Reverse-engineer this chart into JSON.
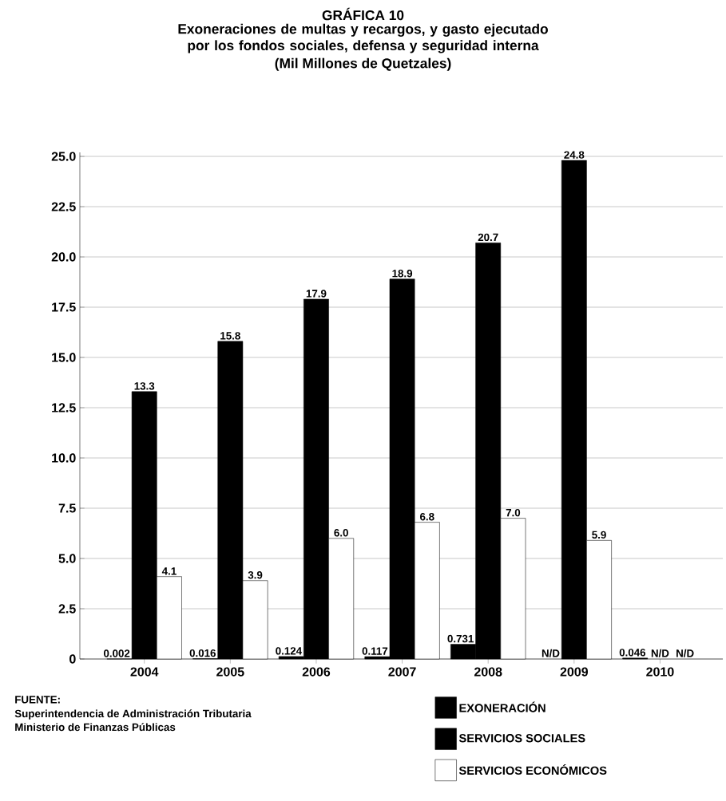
{
  "chart_data": {
    "type": "bar",
    "title": "GRÁFICA 10",
    "subtitle": "Exoneraciones de multas y recargos, y gasto ejecutado por los fondos sociales, defensa y seguridad interna",
    "categories": [
      "2004",
      "2005",
      "2006",
      "2007",
      "2008",
      "2009",
      "2010"
    ],
    "series": [
      {
        "name": "EXONERACIÓN",
        "color": "#000000",
        "values": [
          0.002,
          0.016,
          0.124,
          0.117,
          0.731,
          null,
          0.046
        ],
        "value_labels": [
          "0.002",
          "0.016",
          "0.124",
          "0.117",
          "0.731",
          "N/D",
          "0.046"
        ]
      },
      {
        "name": "SERVICIOS SOCIALES",
        "color": "#000000",
        "values": [
          13.3,
          15.8,
          17.9,
          18.9,
          20.7,
          24.8,
          null
        ],
        "value_labels": [
          "13.3",
          "15.8",
          "17.9",
          "18.9",
          "20.7",
          "24.8",
          "N/D"
        ]
      },
      {
        "name": "SERVICIOS ECONÓMICOS",
        "color": "#ffffff",
        "values": [
          4.1,
          3.9,
          6.0,
          6.8,
          7.0,
          5.9,
          null
        ],
        "value_labels": [
          "4.1",
          "3.9",
          "6.0",
          "6.8",
          "7.0",
          "5.9",
          "N/D"
        ]
      }
    ],
    "ylim": [
      0,
      25.2
    ],
    "yticks": [
      0,
      2.5,
      {
        "value": 5,
        "label": "5.0"
      },
      7.5,
      {
        "value": 10,
        "label": "10.0"
      },
      12.5,
      {
        "value": 15,
        "label": "15.0"
      },
      17.5,
      {
        "value": 20,
        "label": "20.0"
      },
      22.5,
      {
        "value": 25,
        "label": "25.0"
      }
    ],
    "grid": "y",
    "legend": "bottom right",
    "annotations": [
      "(Mil Millones de Quetzales)",
      "FUENTE:",
      "Superintendencia de Administración Tributaria",
      "Ministerio de Finanzas Públicas"
    ]
  }
}
